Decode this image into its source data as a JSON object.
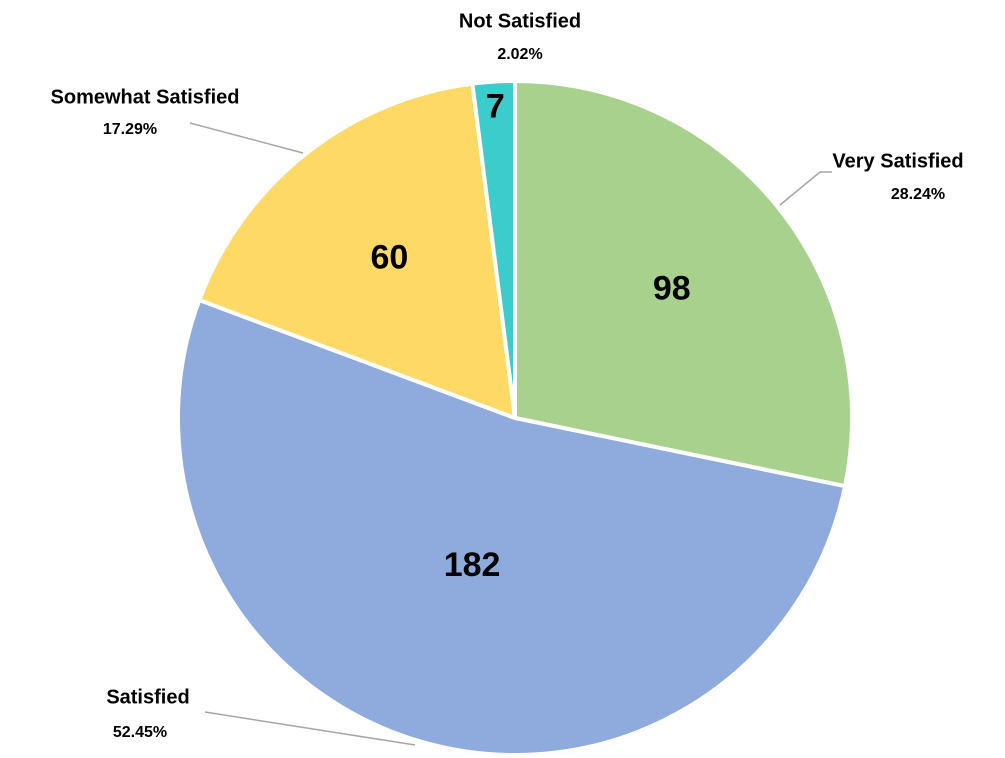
{
  "chart_data": {
    "type": "pie",
    "categories": [
      "Very Satisfied",
      "Satisfied",
      "Somewhat Satisfied",
      "Not Satisfied"
    ],
    "values": [
      98,
      182,
      60,
      7
    ],
    "percent_labels": [
      "28.24%",
      "52.45%",
      "17.29%",
      "2.02%"
    ],
    "colors": [
      "#a9d18e",
      "#8faadc",
      "#ffd966",
      "#3dcccc"
    ]
  }
}
